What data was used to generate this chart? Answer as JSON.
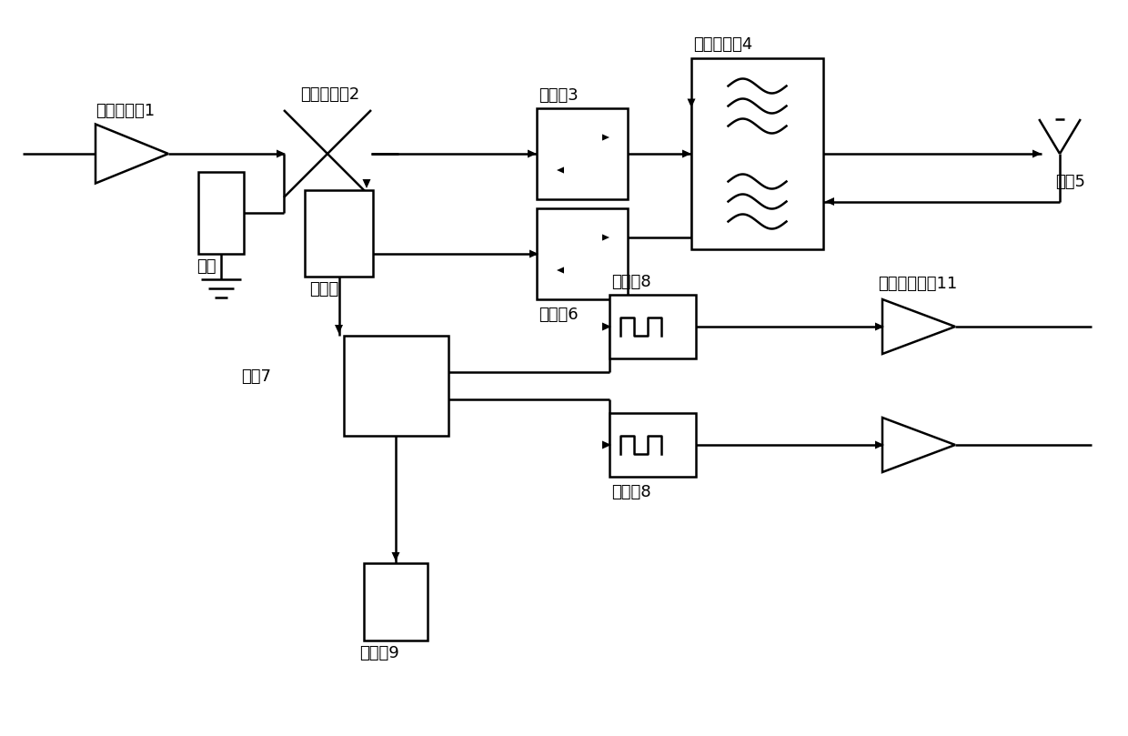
{
  "bg_color": "#ffffff",
  "lw": 1.8,
  "lc": "#000000",
  "labels": {
    "amp1": "功率放大器1",
    "coupler2": "正向耦合器2",
    "iso3": "隔离器3",
    "filter4": "腔体滤波器4",
    "ant5": "天线5",
    "iso6": "隔离器6",
    "bridge7": "电桥7",
    "lim8a": "限幅器8",
    "lim8b": "限幅器8",
    "lna11": "低噪声放大器11",
    "det_top": "检波器",
    "load": "负载",
    "det9": "检波器9"
  },
  "font_size": 13
}
